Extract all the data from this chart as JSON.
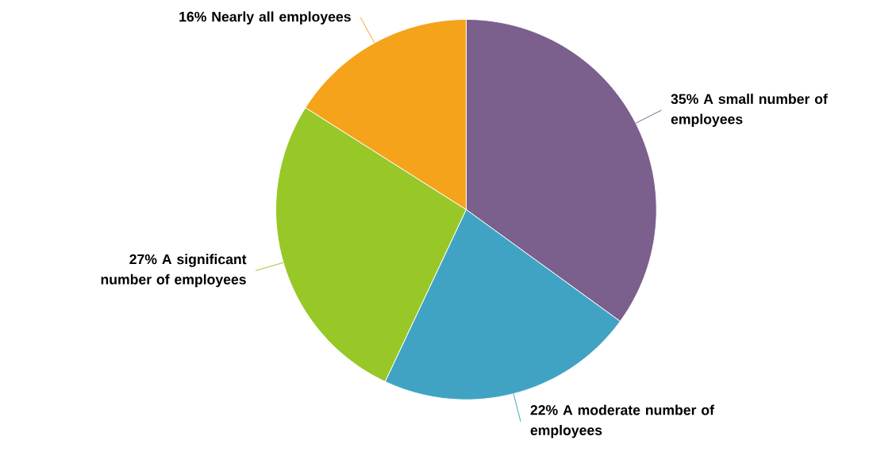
{
  "chart_data": {
    "type": "pie",
    "categories": [
      "A small number of employees",
      "A moderate number of employees",
      "A significant number of employees",
      "Nearly all employees"
    ],
    "values": [
      35,
      22,
      27,
      16
    ],
    "value_labels": [
      "35%",
      "22%",
      "27%",
      "16%"
    ],
    "colors": [
      "#7b5f8d",
      "#41a3c4",
      "#97c827",
      "#f4a31b"
    ]
  }
}
